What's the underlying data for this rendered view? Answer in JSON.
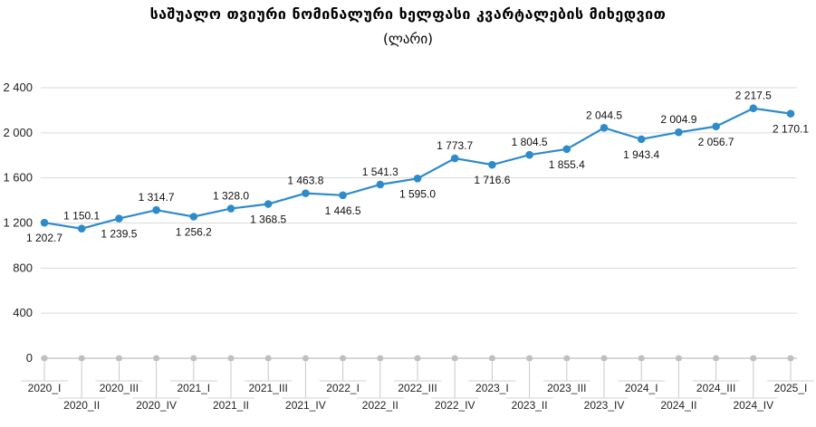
{
  "chart_data": {
    "type": "line",
    "title": "საშუალო თვიური ნომინალური ხელფასი კვარტალების მიხედვით",
    "subtitle": "(ლარი)",
    "categories": [
      "2020_I",
      "2020_II",
      "2020_III",
      "2020_IV",
      "2021_I",
      "2021_II",
      "2021_III",
      "2021_IV",
      "2022_I",
      "2022_II",
      "2022_III",
      "2022_IV",
      "2023_I",
      "2023_II",
      "2023_III",
      "2023_IV",
      "2024_I",
      "2024_II",
      "2024_III",
      "2024_IV",
      "2025_I"
    ],
    "series": [
      {
        "values": [
          1202.7,
          1150.1,
          1239.5,
          1314.7,
          1256.2,
          1328.0,
          1368.5,
          1463.8,
          1446.5,
          1541.3,
          1595.0,
          1773.7,
          1716.6,
          1804.5,
          1855.4,
          2044.5,
          1943.4,
          2004.9,
          2056.7,
          2217.5,
          2170.1
        ]
      }
    ],
    "data_labels": [
      "1 202.7",
      "1 150.1",
      "1 239.5",
      "1 314.7",
      "1 256.2",
      "1 328.0",
      "1 368.5",
      "1 463.8",
      "1 446.5",
      "1 541.3",
      "1 595.0",
      "1 773.7",
      "1 716.6",
      "1 804.5",
      "1 855.4",
      "2 044.5",
      "1 943.4",
      "2 004.9",
      "2 056.7",
      "2 217.5",
      "2 170.1"
    ],
    "label_positions": [
      "below",
      "above",
      "below",
      "above",
      "below",
      "above",
      "below",
      "above",
      "below",
      "above",
      "below",
      "above",
      "below",
      "above",
      "below",
      "above",
      "below",
      "above",
      "below",
      "above",
      "below"
    ],
    "yticks": [
      0,
      400,
      800,
      1200,
      1600,
      2000,
      2400
    ],
    "ytick_labels": [
      "0",
      "400",
      "800",
      "1 200",
      "1 600",
      "2 000",
      "2 400"
    ],
    "ylim": [
      0,
      2400
    ],
    "grid": true,
    "colors": {
      "line": "#2E8BC9",
      "marker": "#2E8BC9",
      "grid": "#d9d9d9",
      "axis_marker": "#bfbfbf"
    }
  }
}
